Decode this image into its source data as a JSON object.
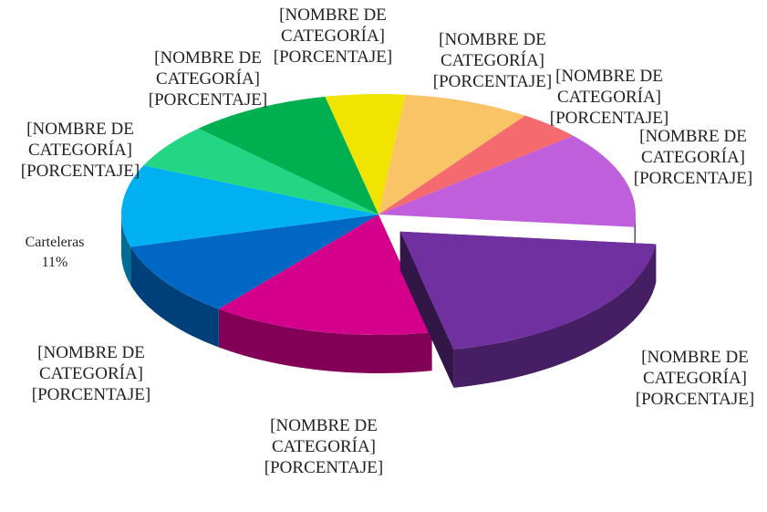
{
  "chart_data": {
    "type": "pie",
    "categories": [
      "[NOMBRE DE CATEGORÍA]",
      "[NOMBRE DE CATEGORÍA]",
      "[NOMBRE DE CATEGORÍA]",
      "[NOMBRE DE CATEGORÍA]",
      "[NOMBRE DE CATEGORÍA]",
      "[NOMBRE DE CATEGORÍA]",
      "[NOMBRE DE CATEGORÍA]",
      "Carteleras",
      "[NOMBRE DE CATEGORÍA]",
      "[NOMBRE DE CATEGORÍA]"
    ],
    "values": [
      5,
      8,
      4,
      13,
      20,
      14,
      10,
      11,
      6,
      9
    ],
    "value_labels": [
      "[PORCENTAJE]",
      "[PORCENTAJE]",
      "[PORCENTAJE]",
      "[PORCENTAJE]",
      "[PORCENTAJE]",
      "[PORCENTAJE]",
      "[PORCENTAJE]",
      "11%",
      "[PORCENTAJE]",
      "[PORCENTAJE]"
    ],
    "colors": [
      "#f0e400",
      "#f9c466",
      "#f46a6e",
      "#c05fdc",
      "#7030a0",
      "#d4008c",
      "#0068c4",
      "#00b0f0",
      "#22d684",
      "#00b050"
    ],
    "exploded_slice": 4
  }
}
